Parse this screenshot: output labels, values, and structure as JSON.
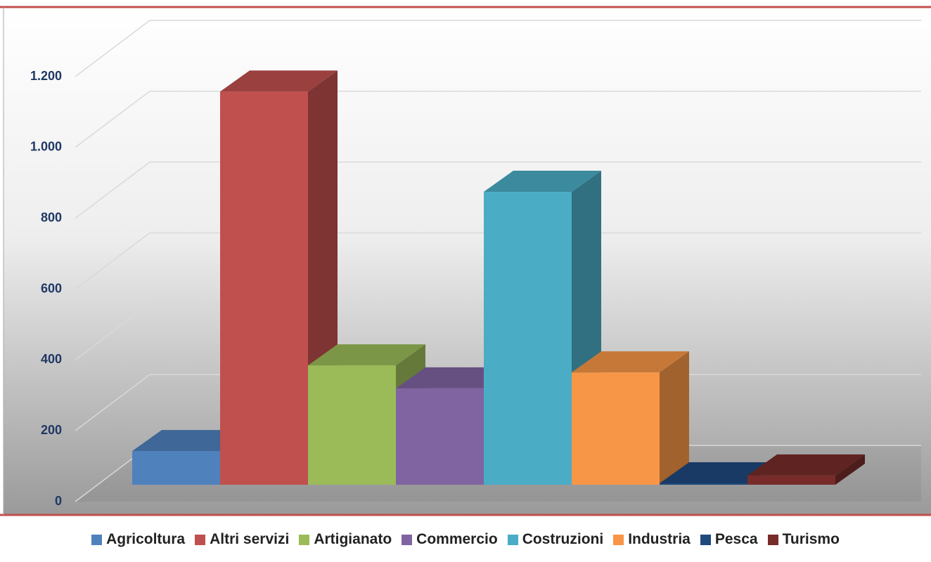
{
  "chart_data": {
    "type": "bar3d",
    "categories": [
      "Agricoltura",
      "Altri servizi",
      "Artigianato",
      "Commercio",
      "Costruzioni",
      "Industria",
      "Pesca",
      "Turismo"
    ],
    "values": [
      95,
      1110,
      337,
      272,
      827,
      317,
      4,
      26
    ],
    "colors": [
      "#4f81bd",
      "#c0504d",
      "#9bbb59",
      "#8064a2",
      "#4bacc6",
      "#f79646",
      "#1f497d",
      "#772c2a"
    ],
    "ylim": [
      0,
      1300
    ],
    "yticks": [
      0,
      200,
      400,
      600,
      800,
      {
        "value": 1000,
        "label": "1.000"
      },
      {
        "value": 1200,
        "label": "1.200"
      }
    ],
    "grid": true
  }
}
